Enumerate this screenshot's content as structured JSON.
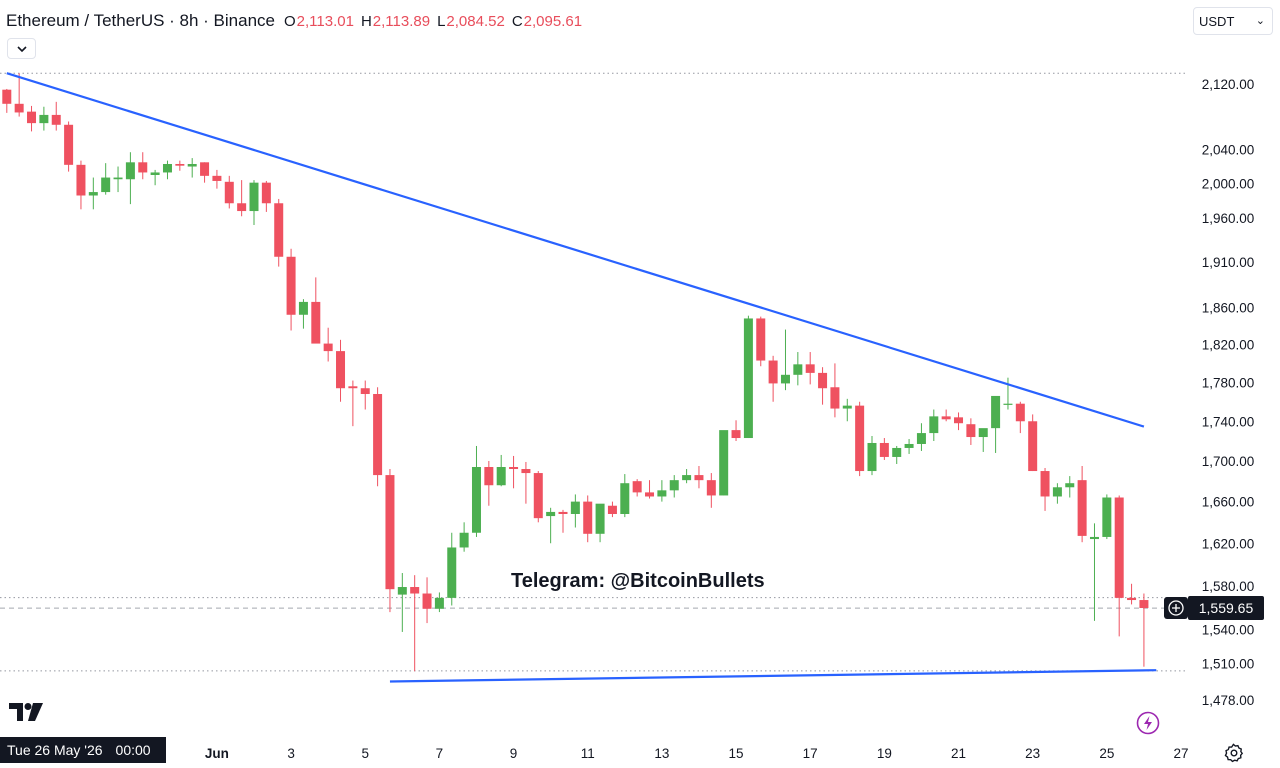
{
  "header": {
    "title": "Ethereum / TetherUS · 8h · Binance",
    "ohlc": [
      {
        "key": "O",
        "value": "2,113.01"
      },
      {
        "key": "H",
        "value": "2,113.89"
      },
      {
        "key": "L",
        "value": "2,084.52"
      },
      {
        "key": "C",
        "value": "2,095.61"
      }
    ]
  },
  "currency": {
    "label": "USDT"
  },
  "watermark": "Telegram: @BitcoinBullets",
  "crosshair": {
    "date": "Tue 26 May '26",
    "time": "00:00"
  },
  "last_price": {
    "label": "1,559.65",
    "value": 1559.65
  },
  "colors": {
    "up": "#4caf50",
    "down": "#ef5160",
    "trendline": "#2962ff",
    "accent": "#131722"
  },
  "icons": {
    "collapse": "chevron-down-icon",
    "logo": "tradingview-logo",
    "settings": "gear-icon",
    "lightning": "lightning-icon",
    "add": "plus-circle-icon"
  },
  "chart_data": {
    "type": "candlestick",
    "title": "Ethereum / TetherUS · 8h · Binance",
    "ylabel": "",
    "y_scale": "log",
    "ylim": [
      1440,
      2160
    ],
    "grid": false,
    "y_ticks": [
      {
        "value": 2120,
        "label": "2,120.00"
      },
      {
        "value": 2040,
        "label": "2,040.00"
      },
      {
        "value": 2000,
        "label": "2,000.00"
      },
      {
        "value": 1960,
        "label": "1,960.00"
      },
      {
        "value": 1910,
        "label": "1,910.00"
      },
      {
        "value": 1860,
        "label": "1,860.00"
      },
      {
        "value": 1820,
        "label": "1,820.00"
      },
      {
        "value": 1780,
        "label": "1,780.00"
      },
      {
        "value": 1740,
        "label": "1,740.00"
      },
      {
        "value": 1700,
        "label": "1,700.00"
      },
      {
        "value": 1660,
        "label": "1,660.00"
      },
      {
        "value": 1620,
        "label": "1,620.00"
      },
      {
        "value": 1580,
        "label": "1,580.00"
      },
      {
        "value": 1540,
        "label": "1,540.00"
      },
      {
        "value": 1510,
        "label": "1,510.00"
      },
      {
        "value": 1478,
        "label": "1,478.00"
      }
    ],
    "x_ticks": [
      {
        "index": 17,
        "label": "Jun",
        "bold": true
      },
      {
        "index": 23,
        "label": "3"
      },
      {
        "index": 29,
        "label": "5"
      },
      {
        "index": 35,
        "label": "7"
      },
      {
        "index": 41,
        "label": "9"
      },
      {
        "index": 47,
        "label": "11"
      },
      {
        "index": 53,
        "label": "13"
      },
      {
        "index": 59,
        "label": "15"
      },
      {
        "index": 65,
        "label": "17"
      },
      {
        "index": 71,
        "label": "19"
      },
      {
        "index": 77,
        "label": "21"
      },
      {
        "index": 83,
        "label": "23"
      },
      {
        "index": 89,
        "label": "25"
      },
      {
        "index": 95,
        "label": "27"
      }
    ],
    "reference_lines": [
      2133.5,
      1569.2,
      1503.3
    ],
    "trendlines": [
      {
        "from": {
          "index": 0,
          "price": 2133.5
        },
        "to": {
          "index": 92,
          "price": 1734.6
        }
      },
      {
        "from": {
          "index": 31,
          "price": 1494.0
        },
        "to": {
          "index": 93,
          "price": 1503.9
        }
      }
    ],
    "candles": [
      [
        2113.0,
        2113.9,
        2084.5,
        2095.6
      ],
      [
        2095.6,
        2133.5,
        2080.0,
        2085.0
      ],
      [
        2086.0,
        2093.0,
        2062.0,
        2072.0
      ],
      [
        2072.0,
        2092.0,
        2063.0,
        2082.0
      ],
      [
        2082.0,
        2098.0,
        2063.0,
        2070.0
      ],
      [
        2070.0,
        2074.0,
        2014.0,
        2022.0
      ],
      [
        2022.0,
        2027.0,
        1970.0,
        1986.0
      ],
      [
        1986.0,
        2007.0,
        1970.0,
        1990.0
      ],
      [
        1990.0,
        2024.0,
        1987.0,
        2007.0
      ],
      [
        2005.0,
        2020.0,
        1990.0,
        2007.0
      ],
      [
        2005.0,
        2037.0,
        1976.0,
        2025.0
      ],
      [
        2025.0,
        2037.0,
        2005.0,
        2013.0
      ],
      [
        2010.0,
        2016.0,
        1998.0,
        2013.0
      ],
      [
        2013.0,
        2027.0,
        2005.0,
        2023.0
      ],
      [
        2023.0,
        2027.0,
        2015.0,
        2021.0
      ],
      [
        2020.0,
        2030.0,
        2007.0,
        2023.0
      ],
      [
        2025.0,
        2025.0,
        2001.0,
        2009.0
      ],
      [
        2009.0,
        2016.0,
        1994.0,
        2003.0
      ],
      [
        2002.0,
        2009.0,
        1971.0,
        1977.0
      ],
      [
        1977.0,
        2004.0,
        1962.0,
        1968.0
      ],
      [
        1968.0,
        2004.0,
        1952.0,
        2001.0
      ],
      [
        2001.0,
        2003.0,
        1967.0,
        1977.0
      ],
      [
        1977.0,
        1982.0,
        1905.0,
        1916.0
      ],
      [
        1916.0,
        1925.0,
        1835.0,
        1852.0
      ],
      [
        1852.0,
        1869.0,
        1837.0,
        1866.0
      ],
      [
        1866.0,
        1893.0,
        1827.0,
        1821.0
      ],
      [
        1821.0,
        1838.0,
        1802.0,
        1813.0
      ],
      [
        1813.0,
        1825.0,
        1760.0,
        1774.0
      ],
      [
        1776.0,
        1782.0,
        1735.0,
        1774.0
      ],
      [
        1774.0,
        1782.0,
        1752.0,
        1768.0
      ],
      [
        1768.0,
        1775.0,
        1675.0,
        1686.0
      ],
      [
        1686.0,
        1692.0,
        1556.0,
        1577.0
      ],
      [
        1572.0,
        1592.0,
        1538.0,
        1579.0
      ],
      [
        1579.0,
        1590.0,
        1503.0,
        1573.0
      ],
      [
        1573.0,
        1588.0,
        1546.0,
        1559.0
      ],
      [
        1559.0,
        1574.0,
        1556.0,
        1569.0
      ],
      [
        1569.0,
        1630.0,
        1562.0,
        1616.0
      ],
      [
        1616.0,
        1640.0,
        1612.0,
        1630.0
      ],
      [
        1630.0,
        1715.0,
        1626.0,
        1694.0
      ],
      [
        1694.0,
        1700.0,
        1656.0,
        1676.0
      ],
      [
        1676.0,
        1706.0,
        1675.0,
        1694.0
      ],
      [
        1694.0,
        1705.0,
        1673.0,
        1692.0
      ],
      [
        1692.0,
        1699.0,
        1658.0,
        1688.0
      ],
      [
        1688.0,
        1690.0,
        1640.0,
        1644.0
      ],
      [
        1646.0,
        1654.0,
        1620.0,
        1650.0
      ],
      [
        1650.0,
        1652.0,
        1630.0,
        1648.0
      ],
      [
        1648.0,
        1667.0,
        1635.0,
        1660.0
      ],
      [
        1660.0,
        1666.0,
        1621.0,
        1629.0
      ],
      [
        1629.0,
        1657.0,
        1621.0,
        1658.0
      ],
      [
        1656.0,
        1660.0,
        1645.0,
        1648.0
      ],
      [
        1648.0,
        1687.0,
        1645.0,
        1678.0
      ],
      [
        1680.0,
        1682.0,
        1665.0,
        1669.0
      ],
      [
        1669.0,
        1681.0,
        1663.0,
        1665.0
      ],
      [
        1665.0,
        1681.0,
        1660.0,
        1671.0
      ],
      [
        1671.0,
        1686.0,
        1664.0,
        1681.0
      ],
      [
        1681.0,
        1692.0,
        1678.0,
        1686.0
      ],
      [
        1686.0,
        1695.0,
        1673.0,
        1681.0
      ],
      [
        1681.0,
        1688.0,
        1654.0,
        1666.0
      ],
      [
        1666.0,
        1730.0,
        1666.0,
        1731.0
      ],
      [
        1731.0,
        1741.0,
        1720.0,
        1723.0
      ],
      [
        1723.0,
        1851.0,
        1723.0,
        1848.0
      ],
      [
        1848.0,
        1850.0,
        1797.0,
        1803.0
      ],
      [
        1803.0,
        1808.0,
        1760.0,
        1779.0
      ],
      [
        1779.0,
        1836.0,
        1772.0,
        1788.0
      ],
      [
        1788.0,
        1812.0,
        1777.0,
        1799.0
      ],
      [
        1799.0,
        1812.0,
        1778.0,
        1790.0
      ],
      [
        1790.0,
        1796.0,
        1757.0,
        1774.0
      ],
      [
        1775.0,
        1800.0,
        1744.0,
        1753.0
      ],
      [
        1753.0,
        1763.0,
        1740.0,
        1756.0
      ],
      [
        1756.0,
        1760.0,
        1685.0,
        1690.0
      ],
      [
        1690.0,
        1725.0,
        1686.0,
        1718.0
      ],
      [
        1718.0,
        1723.0,
        1701.0,
        1704.0
      ],
      [
        1704.0,
        1715.0,
        1697.0,
        1713.0
      ],
      [
        1713.0,
        1722.0,
        1707.0,
        1717.0
      ],
      [
        1717.0,
        1738.0,
        1710.0,
        1728.0
      ],
      [
        1728.0,
        1752.0,
        1720.0,
        1745.0
      ],
      [
        1745.0,
        1752.0,
        1740.0,
        1742.0
      ],
      [
        1744.0,
        1749.0,
        1731.0,
        1738.0
      ],
      [
        1737.0,
        1743.0,
        1716.0,
        1724.0
      ],
      [
        1724.0,
        1731.0,
        1709.0,
        1733.0
      ],
      [
        1733.0,
        1762.0,
        1708.0,
        1766.0
      ],
      [
        1757.0,
        1785.0,
        1752.0,
        1758.0
      ],
      [
        1758.0,
        1760.0,
        1728.0,
        1740.0
      ],
      [
        1740.0,
        1747.0,
        1690.0,
        1690.0
      ],
      [
        1690.0,
        1693.0,
        1651.0,
        1665.0
      ],
      [
        1665.0,
        1678.0,
        1658.0,
        1674.0
      ],
      [
        1674.0,
        1685.0,
        1664.0,
        1678.0
      ],
      [
        1681.0,
        1695.0,
        1621.0,
        1627.0
      ],
      [
        1624.0,
        1639.0,
        1548.0,
        1626.0
      ],
      [
        1626.0,
        1667.0,
        1624.0,
        1664.0
      ],
      [
        1664.0,
        1666.0,
        1534.0,
        1569.0
      ],
      [
        1569.0,
        1582.0,
        1563.0,
        1567.0
      ],
      [
        1567.0,
        1573.0,
        1507.0,
        1559.7
      ]
    ]
  }
}
